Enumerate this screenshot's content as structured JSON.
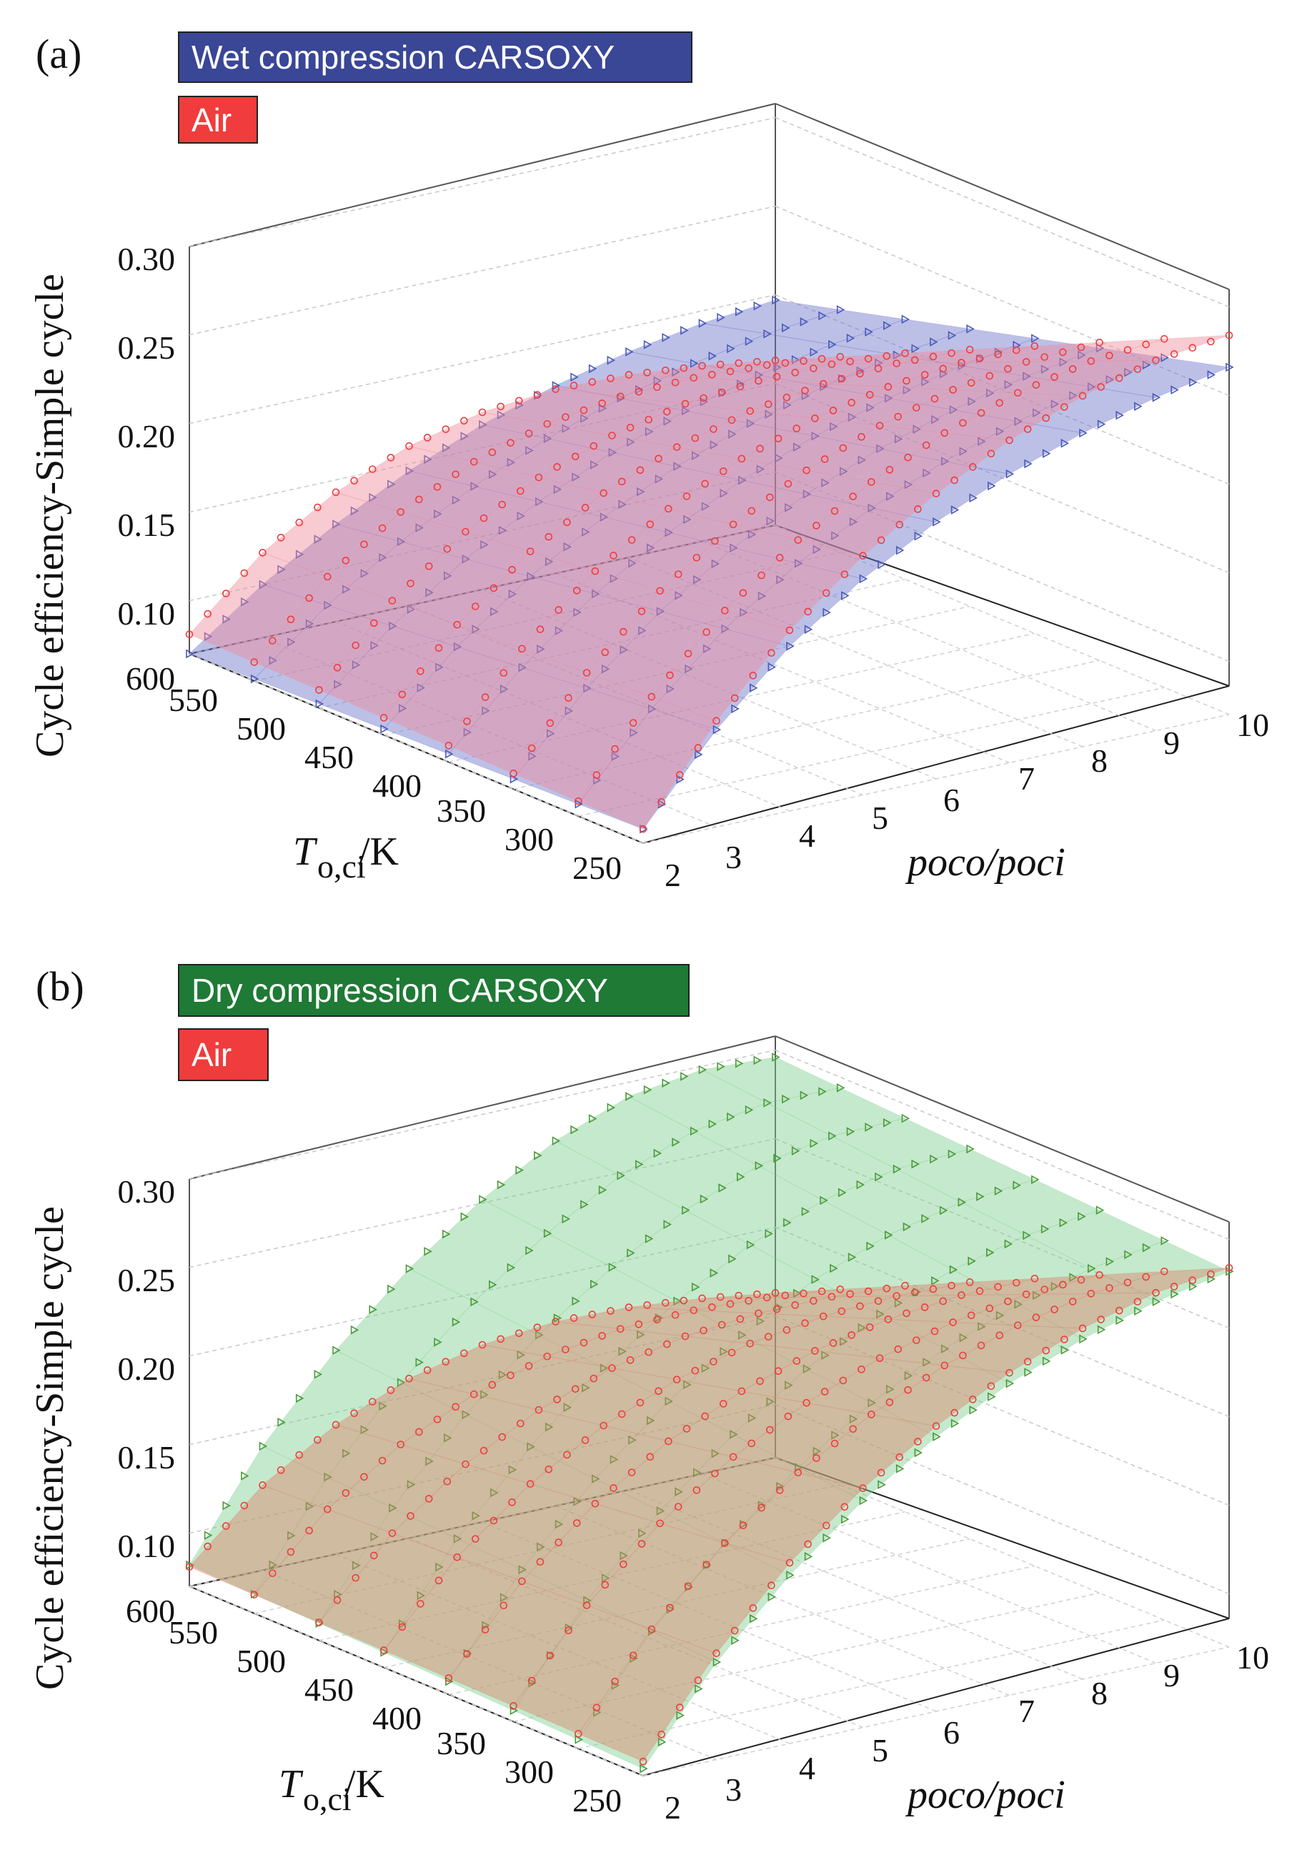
{
  "chart_data": [
    {
      "type": "surface3d",
      "panel_label": "(a)",
      "legend": [
        {
          "label": "Wet compression CARSOXY",
          "color": "#3a4696",
          "marker": "triangle"
        },
        {
          "label": "Air",
          "color": "#f03c3c",
          "marker": "circle"
        }
      ],
      "zlabel": "Cycle efficiency-Simple cycle",
      "ylabel_main": "T",
      "ylabel_sub": "o,ci",
      "ylabel_unit": "/K",
      "xlabel": "poco/poci",
      "x_ticks": [
        "2",
        "3",
        "4",
        "5",
        "6",
        "7",
        "8",
        "9",
        "10"
      ],
      "y_ticks": [
        "250",
        "300",
        "350",
        "400",
        "450",
        "500",
        "550",
        "600"
      ],
      "z_ticks": [
        "0.10",
        "0.15",
        "0.20",
        "0.25",
        "0.30"
      ],
      "x_range": [
        2,
        10
      ],
      "y_range": [
        250,
        600
      ],
      "z_range": [
        0.07,
        0.3
      ],
      "series": [
        {
          "name": "Wet compression CARSOXY",
          "color": "#6b74c9",
          "marker_color": "#4a5ab8",
          "values_T250": [
            0.078,
            0.125,
            0.163,
            0.192,
            0.215,
            0.233,
            0.247,
            0.258,
            0.266
          ],
          "values_T600": [
            0.07,
            0.1,
            0.125,
            0.146,
            0.163,
            0.176,
            0.186,
            0.193,
            0.197
          ]
        },
        {
          "name": "Air",
          "color": "#f08a98",
          "marker_color": "#f03c3c",
          "values_T250": [
            0.078,
            0.13,
            0.172,
            0.205,
            0.231,
            0.252,
            0.268,
            0.279,
            0.284
          ],
          "values_T600": [
            0.081,
            0.118,
            0.143,
            0.16,
            0.17,
            0.174,
            0.173,
            0.169,
            0.163
          ]
        }
      ]
    },
    {
      "type": "surface3d",
      "panel_label": "(b)",
      "legend": [
        {
          "label": "Dry compression CARSOXY",
          "color": "#1e7a35",
          "marker": "triangle"
        },
        {
          "label": "Air",
          "color": "#f03c3c",
          "marker": "circle"
        }
      ],
      "zlabel": "Cycle efficiency-Simple cycle",
      "ylabel_main": "T",
      "ylabel_sub": "o,ci",
      "ylabel_unit": "/K",
      "xlabel": "poco/poci",
      "x_ticks": [
        "2",
        "3",
        "4",
        "5",
        "6",
        "7",
        "8",
        "9",
        "10"
      ],
      "y_ticks": [
        "250",
        "300",
        "350",
        "400",
        "450",
        "500",
        "550",
        "600"
      ],
      "z_ticks": [
        "0.10",
        "0.15",
        "0.20",
        "0.25",
        "0.30"
      ],
      "x_range": [
        2,
        10
      ],
      "y_range": [
        250,
        600
      ],
      "z_range": [
        0.07,
        0.3
      ],
      "series": [
        {
          "name": "Dry compression CARSOXY",
          "color": "#7fce8f",
          "marker_color": "#4a9a3a",
          "values_T250": [
            0.074,
            0.125,
            0.165,
            0.198,
            0.225,
            0.246,
            0.262,
            0.274,
            0.282
          ],
          "values_T600": [
            0.082,
            0.14,
            0.185,
            0.222,
            0.252,
            0.276,
            0.292,
            0.298,
            0.296
          ]
        },
        {
          "name": "Air",
          "color": "#d9826a",
          "marker_color": "#f03c3c",
          "values_T250": [
            0.078,
            0.13,
            0.172,
            0.205,
            0.231,
            0.252,
            0.268,
            0.279,
            0.284
          ],
          "values_T600": [
            0.081,
            0.118,
            0.143,
            0.16,
            0.17,
            0.174,
            0.173,
            0.169,
            0.163
          ]
        }
      ]
    }
  ]
}
